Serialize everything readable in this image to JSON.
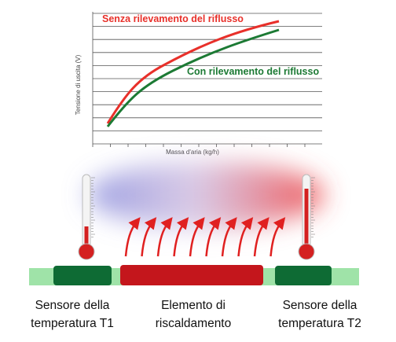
{
  "chart": {
    "y_axis_label": "Tensione di uscita (V)",
    "x_axis_label": "Massa d'aria (kg/h)",
    "series_labels": [
      "Senza rilevamento del riflusso",
      "Con rilevamento del riflusso"
    ]
  },
  "labels": [
    {
      "lines": [
        "Sensore della",
        "temperatura T1"
      ]
    },
    {
      "lines": [
        "Elemento di",
        "riscaldamento"
      ]
    },
    {
      "lines": [
        "Sensore della",
        "temperatura T2"
      ]
    }
  ]
}
